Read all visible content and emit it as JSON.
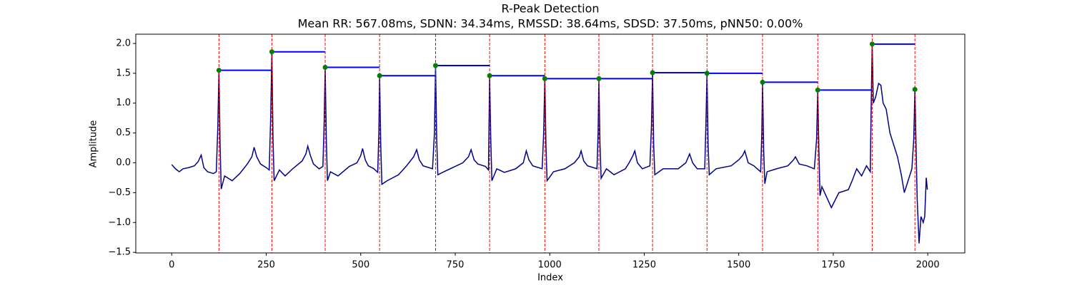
{
  "chart_data": {
    "type": "line",
    "title": "R-Peak Detection",
    "subtitle": "Mean RR: 567.08ms, SDNN: 34.34ms, RMSSD: 38.64ms, SDSD: 37.50ms, pNN50: 0.00%",
    "xlabel": "Index",
    "ylabel": "Amplitude",
    "xlim": [
      -95,
      2098
    ],
    "ylim": [
      -1.51,
      2.155
    ],
    "xticks": [
      0,
      250,
      500,
      750,
      1000,
      1250,
      1500,
      1750,
      2000
    ],
    "yticks": [
      {
        "value": -1.5,
        "label": "−1.5"
      },
      {
        "value": -1,
        "label": "−1.0"
      },
      {
        "value": -0.5,
        "label": "−0.5"
      },
      {
        "value": 0,
        "label": "0.0"
      },
      0.5,
      {
        "value": 1,
        "label": "1.0"
      },
      1.5,
      {
        "value": 2,
        "label": "2.0"
      }
    ],
    "signal": {
      "color": "#00008b",
      "x": [
        0,
        10,
        20,
        30,
        45,
        60,
        70,
        78,
        85,
        95,
        110,
        118,
        122,
        125,
        128,
        131,
        140,
        160,
        180,
        200,
        212,
        218,
        225,
        235,
        250,
        258,
        262,
        265,
        268,
        271,
        285,
        300,
        320,
        345,
        355,
        360,
        367,
        375,
        390,
        400,
        403,
        406,
        409,
        412,
        420,
        440,
        470,
        490,
        500,
        505,
        512,
        520,
        535,
        545,
        548,
        550,
        553,
        556,
        570,
        600,
        620,
        640,
        648,
        655,
        665,
        690,
        695,
        698,
        701,
        704,
        720,
        750,
        770,
        785,
        792,
        800,
        810,
        830,
        838,
        841,
        844,
        847,
        860,
        880,
        910,
        930,
        938,
        945,
        955,
        980,
        984,
        987,
        990,
        993,
        1010,
        1040,
        1065,
        1078,
        1083,
        1090,
        1100,
        1125,
        1128,
        1130,
        1133,
        1136,
        1150,
        1170,
        1200,
        1210,
        1220,
        1225,
        1232,
        1245,
        1265,
        1269,
        1272,
        1275,
        1278,
        1300,
        1340,
        1360,
        1370,
        1378,
        1390,
        1410,
        1413,
        1416,
        1419,
        1422,
        1440,
        1480,
        1500,
        1510,
        1516,
        1525,
        1540,
        1558,
        1561,
        1563,
        1566,
        1569,
        1575,
        1600,
        1630,
        1645,
        1650,
        1660,
        1680,
        1700,
        1706,
        1709,
        1712,
        1715,
        1720,
        1745,
        1765,
        1790,
        1800,
        1812,
        1825,
        1838,
        1848,
        1850,
        1853,
        1856,
        1862,
        1870,
        1876,
        1882,
        1890,
        1900,
        1910,
        1920,
        1930,
        1938,
        1948,
        1958,
        1963,
        1966,
        1969,
        1972,
        1977,
        1982,
        1988,
        1992,
        1996,
        1999
      ],
      "values": [
        -0.03,
        -0.1,
        -0.15,
        -0.1,
        -0.08,
        -0.05,
        0.02,
        0.13,
        -0.08,
        -0.15,
        -0.18,
        -0.15,
        0.6,
        1.55,
        0.3,
        -0.44,
        -0.22,
        -0.3,
        -0.18,
        -0.02,
        0.1,
        0.26,
        0.1,
        -0.02,
        -0.08,
        -0.12,
        0.8,
        1.86,
        0.4,
        -0.3,
        -0.12,
        -0.22,
        -0.1,
        0.03,
        0.15,
        0.28,
        0.12,
        -0.02,
        -0.1,
        -0.06,
        0.6,
        1.6,
        0.4,
        -0.3,
        -0.15,
        -0.22,
        -0.06,
        0.0,
        0.12,
        0.24,
        0.05,
        -0.05,
        -0.1,
        -0.16,
        0.5,
        1.46,
        0.3,
        -0.36,
        -0.3,
        -0.2,
        -0.06,
        0.1,
        0.22,
        0.05,
        -0.05,
        -0.1,
        0.5,
        1.63,
        0.4,
        -0.2,
        -0.15,
        -0.06,
        0.0,
        0.1,
        0.22,
        0.05,
        -0.02,
        -0.06,
        -0.12,
        1.46,
        0.4,
        -0.3,
        -0.1,
        -0.16,
        -0.1,
        0.0,
        0.2,
        0.05,
        -0.05,
        -0.1,
        0.5,
        1.41,
        0.3,
        -0.3,
        -0.15,
        -0.1,
        0.0,
        0.1,
        0.2,
        0.03,
        -0.05,
        -0.1,
        0.5,
        1.41,
        0.3,
        -0.26,
        -0.1,
        -0.2,
        -0.1,
        0.0,
        0.12,
        0.2,
        0.0,
        -0.1,
        -0.05,
        0.6,
        1.51,
        0.3,
        -0.2,
        -0.1,
        -0.1,
        0.0,
        0.15,
        0.0,
        -0.1,
        -0.1,
        0.6,
        1.5,
        0.3,
        -0.2,
        -0.1,
        -0.05,
        0.05,
        0.12,
        0.2,
        0.0,
        -0.05,
        -0.15,
        0.5,
        1.35,
        0.2,
        -0.35,
        -0.15,
        -0.1,
        -0.05,
        0.05,
        0.1,
        -0.02,
        -0.05,
        -0.1,
        0.4,
        1.22,
        0.2,
        -0.55,
        -0.4,
        -0.75,
        -0.5,
        -0.45,
        -0.3,
        -0.1,
        -0.22,
        -0.05,
        -0.15,
        0.8,
        1.99,
        1.0,
        1.1,
        1.33,
        1.3,
        1.0,
        0.9,
        0.5,
        0.3,
        0.1,
        -0.2,
        -0.5,
        -0.3,
        -0.1,
        0.4,
        1.23,
        0.3,
        -0.6,
        -1.35,
        -0.9,
        -1.0,
        -0.9,
        -0.25,
        -0.45
      ]
    },
    "peaks": {
      "color": "#008000",
      "line_color": "#ff0000",
      "rr_color": "#0000ff",
      "x": [
        125,
        265,
        406,
        550,
        698,
        841,
        987,
        1130,
        1272,
        1416,
        1563,
        1709,
        1853,
        1966
      ],
      "values": [
        1.55,
        1.86,
        1.6,
        1.46,
        1.63,
        1.46,
        1.41,
        1.41,
        1.51,
        1.5,
        1.35,
        1.22,
        1.99,
        1.23
      ]
    }
  }
}
